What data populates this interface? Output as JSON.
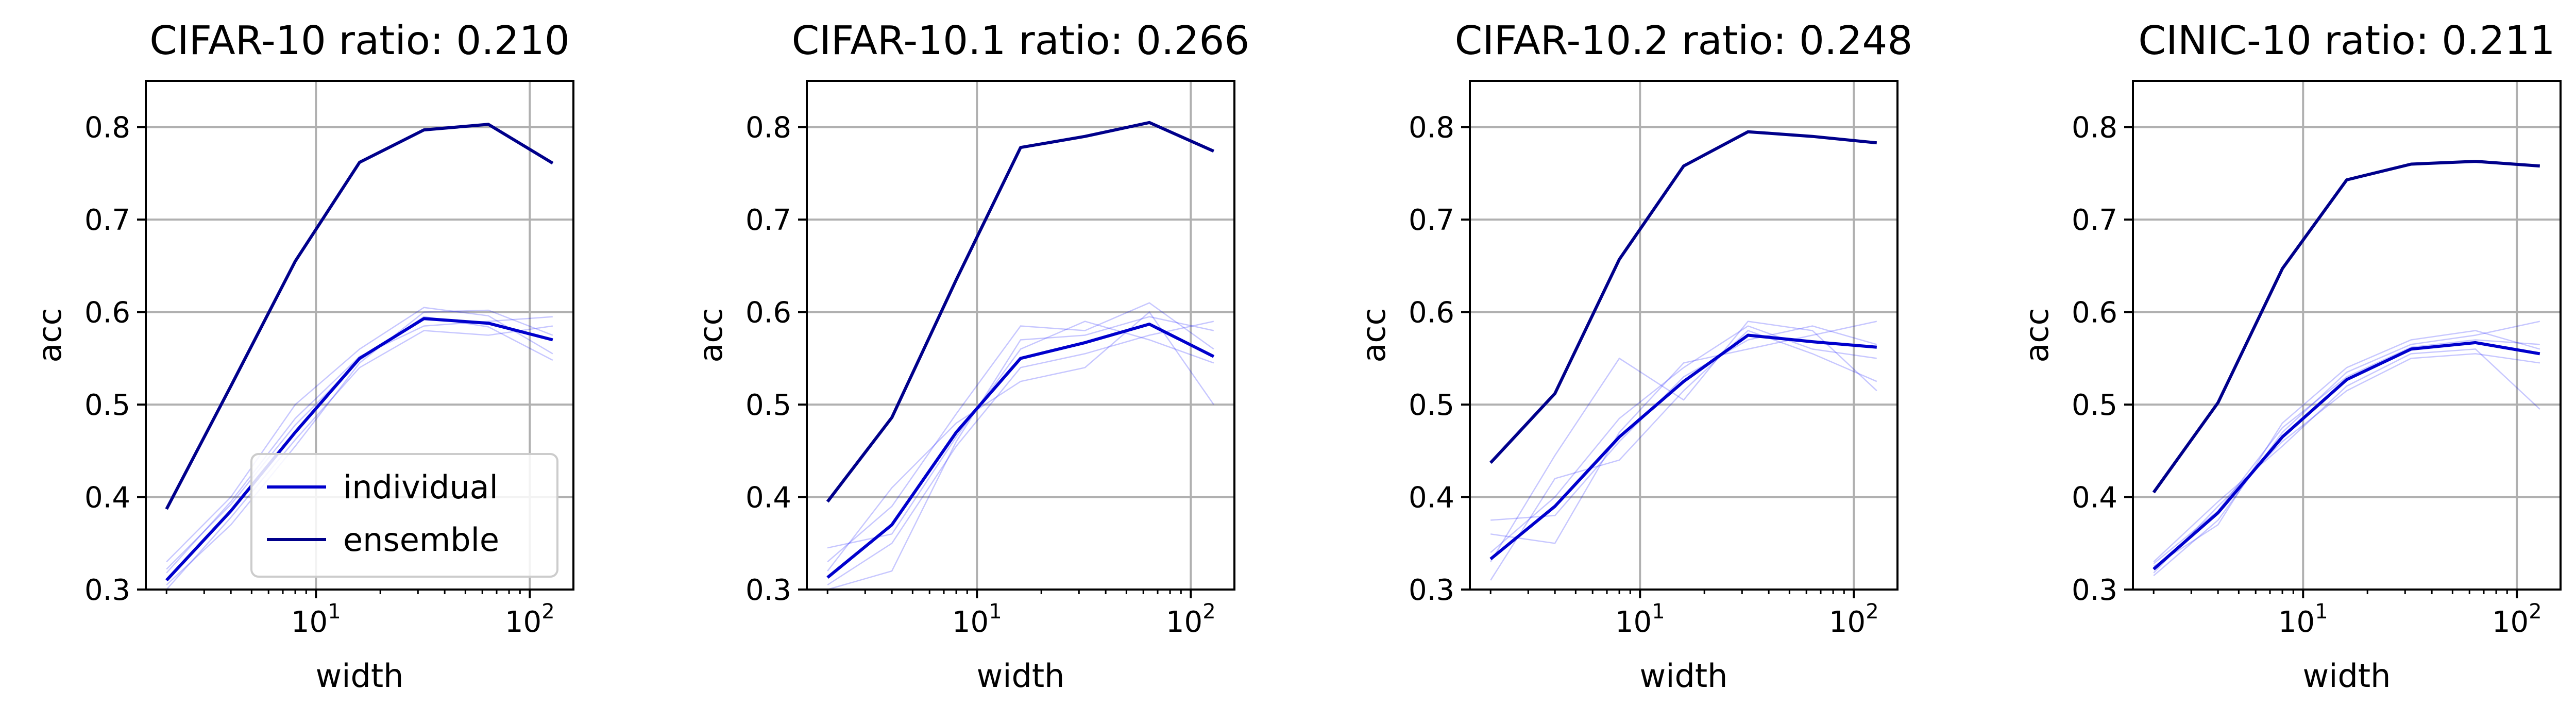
{
  "chart_data": [
    {
      "type": "line",
      "title": "CIFAR-10 ratio: 0.210",
      "xlabel": "width",
      "ylabel": "acc",
      "xscale": "log",
      "xlim": [
        1.6,
        160
      ],
      "ylim": [
        0.3,
        0.85
      ],
      "grid": true,
      "x": [
        2,
        4,
        8,
        16,
        32,
        64,
        128
      ],
      "series": [
        {
          "name": "individual",
          "color": "#0000cc",
          "values": [
            0.31,
            0.385,
            0.47,
            0.55,
            0.593,
            0.588,
            0.57
          ]
        },
        {
          "name": "ensemble",
          "color": "#00008b",
          "values": [
            0.387,
            0.52,
            0.655,
            0.762,
            0.797,
            0.803,
            0.761
          ]
        }
      ],
      "thin_runs": [
        [
          0.305,
          0.37,
          0.455,
          0.545,
          0.6,
          0.602,
          0.575
        ],
        [
          0.318,
          0.395,
          0.485,
          0.552,
          0.585,
          0.59,
          0.595
        ],
        [
          0.33,
          0.4,
          0.5,
          0.56,
          0.605,
          0.596,
          0.555
        ],
        [
          0.3,
          0.378,
          0.462,
          0.54,
          0.58,
          0.575,
          0.585
        ],
        [
          0.322,
          0.392,
          0.478,
          0.548,
          0.595,
          0.584,
          0.548
        ]
      ],
      "legend": {
        "position": "lower right",
        "entries": [
          "individual",
          "ensemble"
        ]
      }
    },
    {
      "type": "line",
      "title": "CIFAR-10.1 ratio: 0.266",
      "xlabel": "width",
      "ylabel": "acc",
      "xscale": "log",
      "xlim": [
        1.6,
        160
      ],
      "ylim": [
        0.3,
        0.85
      ],
      "grid": true,
      "x": [
        2,
        4,
        8,
        16,
        32,
        64,
        128
      ],
      "series": [
        {
          "name": "individual",
          "color": "#0000cc",
          "values": [
            0.313,
            0.37,
            0.47,
            0.55,
            0.567,
            0.587,
            0.552
          ]
        },
        {
          "name": "ensemble",
          "color": "#00008b",
          "values": [
            0.395,
            0.486,
            0.635,
            0.778,
            0.79,
            0.805,
            0.774
          ]
        }
      ],
      "thin_runs": [
        [
          0.33,
          0.39,
          0.49,
          0.585,
          0.58,
          0.61,
          0.56
        ],
        [
          0.305,
          0.35,
          0.455,
          0.54,
          0.555,
          0.575,
          0.59
        ],
        [
          0.32,
          0.41,
          0.48,
          0.525,
          0.54,
          0.6,
          0.5
        ],
        [
          0.345,
          0.36,
          0.465,
          0.56,
          0.59,
          0.57,
          0.545
        ],
        [
          0.3,
          0.32,
          0.46,
          0.57,
          0.575,
          0.595,
          0.58
        ]
      ]
    },
    {
      "type": "line",
      "title": "CIFAR-10.2 ratio: 0.248",
      "xlabel": "width",
      "ylabel": "acc",
      "xscale": "log",
      "xlim": [
        1.6,
        160
      ],
      "ylim": [
        0.3,
        0.85
      ],
      "grid": true,
      "x": [
        2,
        4,
        8,
        16,
        32,
        64,
        128
      ],
      "series": [
        {
          "name": "individual",
          "color": "#0000cc",
          "values": [
            0.333,
            0.39,
            0.465,
            0.525,
            0.575,
            0.568,
            0.562
          ]
        },
        {
          "name": "ensemble",
          "color": "#00008b",
          "values": [
            0.437,
            0.512,
            0.657,
            0.758,
            0.795,
            0.79,
            0.783
          ]
        }
      ],
      "thin_runs": [
        [
          0.33,
          0.445,
          0.55,
          0.505,
          0.59,
          0.58,
          0.515
        ],
        [
          0.36,
          0.35,
          0.47,
          0.545,
          0.56,
          0.575,
          0.59
        ],
        [
          0.31,
          0.42,
          0.44,
          0.515,
          0.58,
          0.555,
          0.525
        ],
        [
          0.375,
          0.38,
          0.46,
          0.53,
          0.57,
          0.585,
          0.565
        ],
        [
          0.34,
          0.4,
          0.485,
          0.54,
          0.585,
          0.56,
          0.55
        ]
      ]
    },
    {
      "type": "line",
      "title": "CINIC-10 ratio: 0.211",
      "xlabel": "width",
      "ylabel": "acc",
      "xscale": "log",
      "xlim": [
        1.6,
        160
      ],
      "ylim": [
        0.3,
        0.85
      ],
      "grid": true,
      "x": [
        2,
        4,
        8,
        16,
        32,
        64,
        128
      ],
      "series": [
        {
          "name": "individual",
          "color": "#0000cc",
          "values": [
            0.322,
            0.383,
            0.465,
            0.527,
            0.56,
            0.567,
            0.555
          ]
        },
        {
          "name": "ensemble",
          "color": "#00008b",
          "values": [
            0.405,
            0.502,
            0.647,
            0.743,
            0.76,
            0.763,
            0.758
          ]
        }
      ],
      "thin_runs": [
        [
          0.315,
          0.375,
          0.47,
          0.535,
          0.565,
          0.575,
          0.59
        ],
        [
          0.33,
          0.395,
          0.455,
          0.52,
          0.555,
          0.56,
          0.495
        ],
        [
          0.325,
          0.37,
          0.48,
          0.54,
          0.57,
          0.58,
          0.56
        ],
        [
          0.318,
          0.39,
          0.46,
          0.515,
          0.55,
          0.555,
          0.545
        ],
        [
          0.328,
          0.385,
          0.475,
          0.53,
          0.562,
          0.57,
          0.565
        ]
      ]
    }
  ]
}
